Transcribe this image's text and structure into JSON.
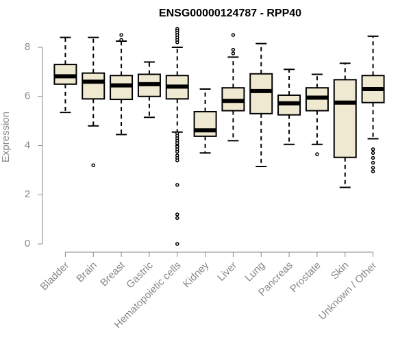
{
  "chart_data": {
    "type": "box",
    "title": "ENSG00000124787 - RPP40",
    "xlabel": "",
    "ylabel": "Expression",
    "ylim": [
      0,
      8.8
    ],
    "yticks": [
      0,
      2,
      4,
      6,
      8
    ],
    "grid": false,
    "box_fill": "#efe9d1",
    "box_stroke": "#000000",
    "axis_color": "#888888",
    "categories": [
      "Bladder",
      "Brain",
      "Breast",
      "Gastric",
      "Hematopoietic cells",
      "Kidney",
      "Liver",
      "Lung",
      "Pancreas",
      "Prostate",
      "Skin",
      "Unknown / Other"
    ],
    "boxes": [
      {
        "category": "Bladder",
        "whisker_low": 5.35,
        "q1": 6.5,
        "median": 6.82,
        "q3": 7.3,
        "whisker_high": 8.4,
        "outliers": []
      },
      {
        "category": "Brain",
        "whisker_low": 4.8,
        "q1": 5.9,
        "median": 6.6,
        "q3": 6.95,
        "whisker_high": 8.4,
        "outliers": [
          3.2
        ]
      },
      {
        "category": "Breast",
        "whisker_low": 4.45,
        "q1": 5.88,
        "median": 6.45,
        "q3": 6.85,
        "whisker_high": 8.25,
        "outliers": [
          8.5,
          8.3
        ]
      },
      {
        "category": "Gastric",
        "whisker_low": 5.15,
        "q1": 6.0,
        "median": 6.5,
        "q3": 6.9,
        "whisker_high": 7.4,
        "outliers": []
      },
      {
        "category": "Hematopoietic cells",
        "whisker_low": 4.55,
        "q1": 5.9,
        "median": 6.4,
        "q3": 6.85,
        "whisker_high": 8.0,
        "outliers": [
          8.75,
          8.68,
          8.6,
          8.5,
          8.4,
          8.3,
          8.2,
          4.5,
          4.4,
          4.3,
          4.2,
          4.1,
          4.0,
          3.95,
          3.85,
          3.75,
          3.6,
          3.5,
          3.4,
          2.4,
          1.2,
          1.05,
          0.0
        ]
      },
      {
        "category": "Kidney",
        "whisker_low": 3.7,
        "q1": 4.38,
        "median": 4.62,
        "q3": 5.38,
        "whisker_high": 6.3,
        "outliers": []
      },
      {
        "category": "Liver",
        "whisker_low": 4.2,
        "q1": 5.42,
        "median": 5.82,
        "q3": 6.35,
        "whisker_high": 7.6,
        "outliers": [
          8.5,
          7.9,
          7.75
        ]
      },
      {
        "category": "Lung",
        "whisker_low": 3.15,
        "q1": 5.3,
        "median": 6.22,
        "q3": 6.92,
        "whisker_high": 8.15,
        "outliers": []
      },
      {
        "category": "Pancreas",
        "whisker_low": 4.05,
        "q1": 5.25,
        "median": 5.72,
        "q3": 6.05,
        "whisker_high": 7.1,
        "outliers": []
      },
      {
        "category": "Prostate",
        "whisker_low": 4.05,
        "q1": 5.42,
        "median": 5.95,
        "q3": 6.35,
        "whisker_high": 6.9,
        "outliers": [
          3.65
        ]
      },
      {
        "category": "Skin",
        "whisker_low": 2.3,
        "q1": 3.52,
        "median": 5.75,
        "q3": 6.68,
        "whisker_high": 7.35,
        "outliers": []
      },
      {
        "category": "Unknown / Other",
        "whisker_low": 4.28,
        "q1": 5.75,
        "median": 6.3,
        "q3": 6.85,
        "whisker_high": 8.45,
        "outliers": [
          3.85,
          3.7,
          3.5,
          3.3,
          3.1,
          2.95
        ]
      }
    ]
  }
}
